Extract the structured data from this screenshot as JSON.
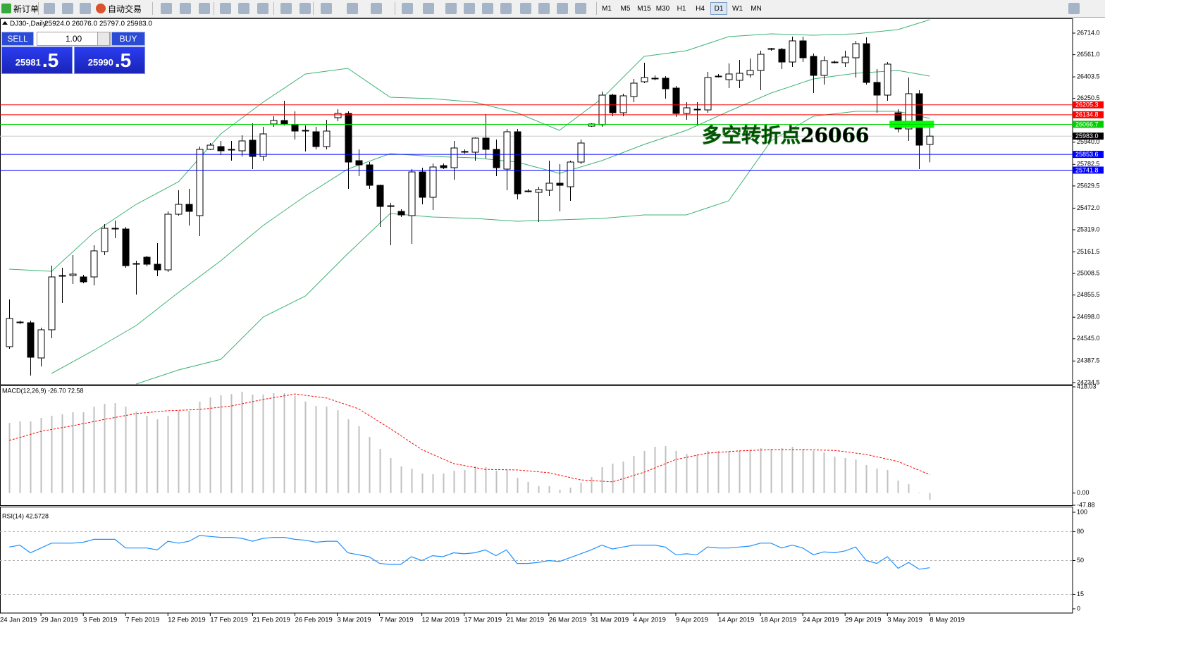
{
  "toolbar": {
    "new_order": "新订单",
    "auto_trade": "自动交易",
    "timeframes": [
      "M1",
      "M5",
      "M15",
      "M30",
      "H1",
      "H4",
      "D1",
      "W1",
      "MN"
    ],
    "active_timeframe": "D1"
  },
  "header": {
    "symbol": "DJ30-,Daily",
    "ohlc": "25924.0 26076.0 25797.0 25983.0"
  },
  "trade_panel": {
    "sell": "SELL",
    "buy": "BUY",
    "lots": "1.00",
    "sell_price": "25981",
    "sell_pips": ".5",
    "buy_price": "25990",
    "buy_pips": ".5"
  },
  "chart_data": [
    {
      "type": "candlestick",
      "xlim": [
        -0.87,
        100.5
      ],
      "xticks": [
        {
          "value": -1,
          "label": "24 Jan 2019"
        },
        {
          "value": 3,
          "label": "29 Jan 2019"
        },
        {
          "value": 7,
          "label": "3 Feb 2019"
        },
        {
          "value": 11,
          "label": "7 Feb 2019"
        },
        {
          "value": 15,
          "label": "12 Feb 2019"
        },
        {
          "value": 19,
          "label": "17 Feb 2019"
        },
        {
          "value": 23,
          "label": "21 Feb 2019"
        },
        {
          "value": 27,
          "label": "26 Feb 2019"
        },
        {
          "value": 31,
          "label": "3 Mar 2019"
        },
        {
          "value": 35,
          "label": "7 Mar 2019"
        },
        {
          "value": 39,
          "label": "12 Mar 2019"
        },
        {
          "value": 43,
          "label": "17 Mar 2019"
        },
        {
          "value": 47,
          "label": "21 Mar 2019"
        },
        {
          "value": 51,
          "label": "26 Mar 2019"
        },
        {
          "value": 55,
          "label": "31 Mar 2019"
        },
        {
          "value": 59,
          "label": "4 Apr 2019"
        },
        {
          "value": 63,
          "label": "9 Apr 2019"
        },
        {
          "value": 67,
          "label": "14 Apr 2019"
        },
        {
          "value": 71,
          "label": "18 Apr 2019"
        },
        {
          "value": 75,
          "label": "24 Apr 2019"
        },
        {
          "value": 79,
          "label": "29 Apr 2019"
        },
        {
          "value": 83,
          "label": "3 May 2019"
        },
        {
          "value": 87,
          "label": "8 May 2019"
        }
      ],
      "ylim": [
        24224,
        26809
      ],
      "yticks": [
        {
          "value": 26714,
          "label": "26714.0"
        },
        {
          "value": 26561,
          "label": "26561.0"
        },
        26403.5,
        26250.5,
        {
          "value": 25940,
          "label": "25940.0"
        },
        25782.5,
        25629.5,
        {
          "value": 25472,
          "label": "25472.0"
        },
        {
          "value": 25319,
          "label": "25319.0"
        },
        25161.5,
        25008.5,
        24855.5,
        {
          "value": 24698,
          "label": "24698.0"
        },
        {
          "value": 24545,
          "label": "24545.0"
        },
        24387.5,
        24234.5
      ],
      "open": [
        24489,
        24659,
        24659,
        24409,
        24609,
        24989,
        24994,
        24984,
        24984,
        25164,
        25324,
        25324,
        25079,
        25124,
        25074,
        25034,
        25429,
        25499,
        25419,
        25889,
        25909,
        25884,
        25879,
        25954,
        25839,
        26069,
        26094,
        26064,
        26024,
        26014,
        25909,
        26114,
        26144,
        25809,
        25779,
        25634,
        25489,
        25449,
        25419,
        25729,
        25549,
        25774,
        25759,
        25869,
        25869,
        25969,
        25889,
        25749,
        26014,
        25594,
        25584,
        25599,
        25649,
        25624,
        25799,
        26054,
        26064,
        26274,
        26149,
        26264,
        26369,
        26389,
        26394,
        26324,
        26144,
        26174,
        26169,
        26404,
        26384,
        26379,
        26419,
        26449,
        26599,
        26599,
        26509,
        26659,
        26549,
        26414,
        26509,
        26504,
        26539,
        26639,
        26364,
        26274,
        26149,
        26034,
        26284,
        25924
      ],
      "high": [
        24824,
        24674,
        24674,
        24624,
        25064,
        25049,
        25139,
        24999,
        25209,
        25359,
        25384,
        25339,
        25099,
        25134,
        25224,
        25449,
        25599,
        25609,
        25909,
        25934,
        25949,
        25949,
        25989,
        26074,
        26049,
        26124,
        26234,
        26159,
        26059,
        26049,
        26099,
        26174,
        26159,
        25889,
        25799,
        25639,
        25509,
        25464,
        25749,
        25759,
        25789,
        25789,
        25949,
        25889,
        25974,
        26139,
        25959,
        26034,
        26034,
        25609,
        25624,
        25809,
        25784,
        25809,
        25959,
        26074,
        26299,
        26284,
        26284,
        26389,
        26504,
        26414,
        26409,
        26339,
        26224,
        26224,
        26439,
        26424,
        26499,
        26524,
        26534,
        26589,
        26609,
        26609,
        26689,
        26689,
        26569,
        26549,
        26519,
        26589,
        26659,
        26684,
        26459,
        26509,
        26174,
        26399,
        26309,
        26076
      ],
      "low": [
        24474,
        24649,
        24284,
        24349,
        24549,
        24799,
        24934,
        24939,
        24924,
        25139,
        25259,
        25049,
        24859,
        25059,
        24989,
        25019,
        25419,
        25349,
        25274,
        25884,
        25849,
        25809,
        25839,
        25749,
        25809,
        26049,
        26059,
        25959,
        25874,
        25889,
        25889,
        26089,
        25609,
        25699,
        25609,
        25339,
        25209,
        25409,
        25219,
        25499,
        25459,
        25749,
        25674,
        25859,
        25809,
        25824,
        25699,
        25599,
        25534,
        25584,
        25374,
        25559,
        25449,
        25524,
        25784,
        26049,
        26049,
        26124,
        26124,
        26224,
        26359,
        26379,
        26249,
        26119,
        26099,
        26059,
        26149,
        26399,
        26324,
        26324,
        26399,
        26309,
        26589,
        26459,
        26474,
        26509,
        26289,
        26349,
        26499,
        26474,
        26399,
        26349,
        26149,
        26234,
        26009,
        25949,
        25749,
        25797
      ],
      "close": [
        24689,
        24664,
        24414,
        24609,
        24984,
        24994,
        25004,
        24949,
        25169,
        25329,
        25329,
        25064,
        25074,
        25074,
        25034,
        25429,
        25499,
        25449,
        25889,
        25919,
        25879,
        25889,
        25949,
        25839,
        25999,
        26094,
        26069,
        26019,
        26019,
        25909,
        26019,
        26144,
        25799,
        25779,
        25634,
        25484,
        25484,
        25424,
        25729,
        25549,
        25764,
        25759,
        25899,
        25874,
        25969,
        25889,
        25759,
        26014,
        25574,
        25589,
        25604,
        25649,
        25634,
        25799,
        25934,
        26069,
        26274,
        26149,
        26269,
        26359,
        26399,
        26394,
        26319,
        26144,
        26184,
        26169,
        26399,
        26409,
        26424,
        26429,
        26449,
        26564,
        26604,
        26509,
        26659,
        26539,
        26414,
        26519,
        26504,
        26544,
        26639,
        26364,
        26274,
        26494,
        26034,
        26284,
        25919,
        25983
      ],
      "lines": [
        {
          "color": "#3cb371",
          "x": [
            0,
            4,
            8,
            12,
            16,
            20,
            24,
            28,
            32,
            36,
            40,
            44,
            48,
            52,
            56,
            60,
            64,
            68,
            72,
            76,
            80,
            84,
            87
          ],
          "values": [
            25039,
            25024,
            25299,
            25499,
            25659,
            25999,
            26224,
            26424,
            26464,
            26259,
            26249,
            26224,
            26149,
            26024,
            26249,
            26549,
            26589,
            26689,
            26709,
            26699,
            26709,
            26739,
            26809
          ]
        },
        {
          "color": "#3cb371",
          "x": [
            4,
            8,
            12,
            16,
            20,
            24,
            28,
            32,
            36,
            40,
            44,
            48,
            52,
            56,
            60,
            64,
            68,
            72,
            76,
            80,
            84,
            87
          ],
          "values": [
            24299,
            24464,
            24639,
            24874,
            25099,
            25349,
            25559,
            25749,
            25859,
            25839,
            25829,
            25799,
            25719,
            25809,
            25924,
            26024,
            26159,
            26289,
            26389,
            26429,
            26449,
            26409
          ]
        },
        {
          "color": "#3cb371",
          "x": [
            12,
            16,
            20,
            24,
            28,
            32,
            36,
            40,
            44,
            48,
            52,
            56,
            60,
            64,
            68,
            72,
            76,
            80,
            84,
            87
          ],
          "values": [
            24224,
            24324,
            24399,
            24699,
            24849,
            25149,
            25434,
            25409,
            25399,
            25379,
            25389,
            25399,
            25424,
            25424,
            25524,
            25949,
            26124,
            26159,
            26159,
            26109
          ]
        }
      ],
      "hlines": [
        {
          "value": 26205.3,
          "color": "#ff0000"
        },
        {
          "value": 26134.8,
          "color": "#ff0000"
        },
        {
          "value": 26066.7,
          "color": "#00d000"
        },
        {
          "value": 25853.6,
          "color": "#0000ff"
        },
        {
          "value": 25741.8,
          "color": "#0000ff"
        }
      ],
      "bid": {
        "value": 25983,
        "label": "25983.0",
        "color": "#000000"
      },
      "annotation": {
        "text": "多空转折点26066",
        "color": "#22c822"
      }
    },
    {
      "type": "macd",
      "title": "MACD(12,26,9) -26.70 72.58",
      "ylim": [
        -47.88,
        418.03
      ],
      "yticks": [
        418.03,
        {
          "value": 0,
          "label": "0.00"
        },
        -47.88
      ],
      "values": [
        276,
        282,
        282,
        296,
        304,
        310,
        318,
        318,
        340,
        351,
        354,
        340,
        321,
        304,
        290,
        304,
        324,
        324,
        360,
        376,
        385,
        390,
        399,
        388,
        388,
        393,
        393,
        382,
        360,
        343,
        340,
        326,
        290,
        263,
        221,
        174,
        138,
        105,
        96,
        77,
        74,
        77,
        88,
        91,
        105,
        102,
        88,
        91,
        60,
        44,
        27,
        27,
        13,
        21,
        41,
        63,
        102,
        116,
        124,
        146,
        166,
        182,
        185,
        166,
        154,
        152,
        166,
        166,
        166,
        166,
        171,
        177,
        174,
        177,
        182,
        174,
        166,
        160,
        143,
        138,
        132,
        110,
        96,
        91,
        49,
        35,
        2,
        -26.7
      ],
      "color": "#c0c0c0",
      "signal": {
        "color": "#ff0000",
        "x": [
          0,
          3,
          6,
          9,
          12,
          15,
          18,
          21,
          24,
          27,
          30,
          33,
          36,
          39,
          42,
          45,
          48,
          51,
          54,
          57,
          60,
          63,
          66,
          69,
          72,
          75,
          78,
          81,
          84,
          87
        ],
        "values": [
          207,
          243,
          265,
          290,
          313,
          324,
          329,
          343,
          368,
          390,
          374,
          332,
          254,
          171,
          116,
          93,
          91,
          80,
          52,
          44,
          82,
          132,
          157,
          166,
          171,
          171,
          168,
          152,
          124,
          72.58
        ]
      }
    },
    {
      "type": "line",
      "title": "RSI(14) 42.5728",
      "ylim": [
        0,
        100
      ],
      "yticks": [
        100,
        80,
        50,
        15,
        0
      ],
      "color": "#1e90ff",
      "values": [
        64,
        66,
        58,
        63,
        68,
        68,
        68,
        69,
        72,
        72,
        72,
        63,
        63,
        63,
        61,
        70,
        68,
        70,
        76,
        75,
        74,
        74,
        73,
        70,
        73,
        74,
        74,
        72,
        71,
        69,
        70,
        70,
        58,
        56,
        54,
        47,
        46,
        46,
        54,
        50,
        55,
        54,
        58,
        57,
        58,
        61,
        55,
        61,
        47,
        47,
        48,
        50,
        49,
        53,
        57,
        61,
        66,
        62,
        64,
        66,
        66,
        66,
        64,
        56,
        57,
        56,
        64,
        63,
        63,
        64,
        65,
        68,
        68,
        63,
        66,
        63,
        56,
        59,
        58,
        60,
        64,
        50,
        47,
        54,
        42,
        48,
        41,
        42.5728
      ]
    }
  ]
}
